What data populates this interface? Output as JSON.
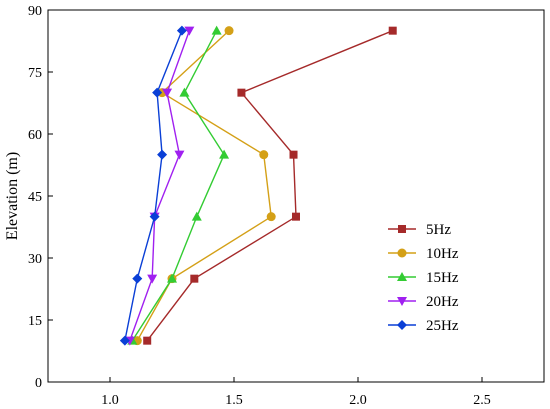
{
  "chart_data": {
    "type": "line",
    "title": "",
    "xlabel": "",
    "ylabel": "Elevation (m)",
    "xlim": [
      0.75,
      2.75
    ],
    "ylim": [
      0,
      90
    ],
    "xticks": [
      1.0,
      1.5,
      2.0,
      2.5
    ],
    "xtick_labels": [
      "1.0",
      "1.5",
      "2.0",
      "2.5"
    ],
    "yticks": [
      0,
      15,
      30,
      45,
      60,
      75,
      90
    ],
    "ytick_labels": [
      "0",
      "15",
      "30",
      "45",
      "60",
      "75",
      "90"
    ],
    "grid": false,
    "legend_position": "right",
    "series": [
      {
        "name": "5Hz",
        "color": "#a52a2a",
        "marker": "square",
        "points": [
          [
            1.15,
            10
          ],
          [
            1.34,
            25
          ],
          [
            1.75,
            40
          ],
          [
            1.74,
            55
          ],
          [
            1.53,
            70
          ],
          [
            2.14,
            85
          ]
        ]
      },
      {
        "name": "10Hz",
        "color": "#d4a017",
        "marker": "circle",
        "points": [
          [
            1.11,
            10
          ],
          [
            1.25,
            25
          ],
          [
            1.65,
            40
          ],
          [
            1.62,
            55
          ],
          [
            1.21,
            70
          ],
          [
            1.48,
            85
          ]
        ]
      },
      {
        "name": "15Hz",
        "color": "#33cc33",
        "marker": "triangle-up",
        "points": [
          [
            1.09,
            10
          ],
          [
            1.25,
            25
          ],
          [
            1.35,
            40
          ],
          [
            1.46,
            55
          ],
          [
            1.3,
            70
          ],
          [
            1.43,
            85
          ]
        ]
      },
      {
        "name": "20Hz",
        "color": "#a020f0",
        "marker": "triangle-down",
        "points": [
          [
            1.08,
            10
          ],
          [
            1.17,
            25
          ],
          [
            1.18,
            40
          ],
          [
            1.28,
            55
          ],
          [
            1.23,
            70
          ],
          [
            1.32,
            85
          ]
        ]
      },
      {
        "name": "25Hz",
        "color": "#0a3fd6",
        "marker": "diamond",
        "points": [
          [
            1.06,
            10
          ],
          [
            1.11,
            25
          ],
          [
            1.18,
            40
          ],
          [
            1.21,
            55
          ],
          [
            1.19,
            70
          ],
          [
            1.29,
            85
          ]
        ]
      }
    ]
  }
}
